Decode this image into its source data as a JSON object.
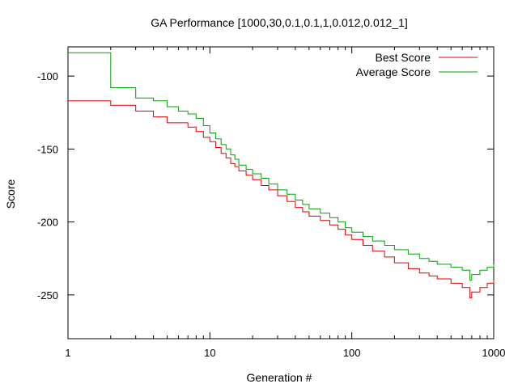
{
  "chart_data": {
    "type": "line",
    "title": "GA Performance [1000,30,0.1,0.1,1,0.012,0.012_1]",
    "xlabel": "Generation #",
    "ylabel": "Score",
    "xscale": "log",
    "xlim": [
      1,
      1000
    ],
    "ylim": [
      -280,
      -80
    ],
    "x_ticks": [
      1,
      10,
      100,
      1000
    ],
    "x_tick_labels": [
      "1",
      "10",
      "100",
      "1000"
    ],
    "y_ticks": [
      -100,
      -150,
      -200,
      -250
    ],
    "y_tick_labels": [
      "-100",
      "-150",
      "-200",
      "-250"
    ],
    "grid": false,
    "legend_position": "top-right",
    "colors": {
      "best": "#e00000",
      "average": "#00a000"
    },
    "series": [
      {
        "name": "Best Score",
        "color": "#e00000",
        "step": true,
        "points": [
          [
            1,
            -117
          ],
          [
            2,
            -120
          ],
          [
            3,
            -124
          ],
          [
            4,
            -128
          ],
          [
            5,
            -132
          ],
          [
            7,
            -135
          ],
          [
            8,
            -138
          ],
          [
            9,
            -142
          ],
          [
            10,
            -145
          ],
          [
            11,
            -149
          ],
          [
            12,
            -153
          ],
          [
            13,
            -156
          ],
          [
            14,
            -160
          ],
          [
            15,
            -162
          ],
          [
            16,
            -165
          ],
          [
            18,
            -168
          ],
          [
            20,
            -171
          ],
          [
            23,
            -175
          ],
          [
            26,
            -178
          ],
          [
            30,
            -182
          ],
          [
            35,
            -186
          ],
          [
            40,
            -190
          ],
          [
            45,
            -193
          ],
          [
            50,
            -196
          ],
          [
            60,
            -199
          ],
          [
            70,
            -202
          ],
          [
            80,
            -205
          ],
          [
            90,
            -209
          ],
          [
            100,
            -212
          ],
          [
            120,
            -216
          ],
          [
            140,
            -220
          ],
          [
            170,
            -224
          ],
          [
            200,
            -228
          ],
          [
            250,
            -232
          ],
          [
            300,
            -235
          ],
          [
            350,
            -237
          ],
          [
            400,
            -239
          ],
          [
            500,
            -242
          ],
          [
            600,
            -245
          ],
          [
            680,
            -252
          ],
          [
            700,
            -248
          ],
          [
            800,
            -245
          ],
          [
            900,
            -242
          ],
          [
            1000,
            -240
          ]
        ]
      },
      {
        "name": "Average Score",
        "color": "#00a000",
        "step": true,
        "points": [
          [
            1,
            -84
          ],
          [
            2,
            -108
          ],
          [
            3,
            -115
          ],
          [
            4,
            -117
          ],
          [
            5,
            -121
          ],
          [
            6,
            -124
          ],
          [
            7,
            -126
          ],
          [
            8,
            -129
          ],
          [
            9,
            -134
          ],
          [
            10,
            -139
          ],
          [
            11,
            -143
          ],
          [
            12,
            -147
          ],
          [
            13,
            -150
          ],
          [
            14,
            -154
          ],
          [
            15,
            -157
          ],
          [
            16,
            -161
          ],
          [
            18,
            -164
          ],
          [
            20,
            -167
          ],
          [
            23,
            -170
          ],
          [
            26,
            -174
          ],
          [
            30,
            -178
          ],
          [
            35,
            -181
          ],
          [
            40,
            -185
          ],
          [
            45,
            -188
          ],
          [
            50,
            -191
          ],
          [
            60,
            -194
          ],
          [
            70,
            -197
          ],
          [
            80,
            -200
          ],
          [
            90,
            -204
          ],
          [
            100,
            -207
          ],
          [
            120,
            -210
          ],
          [
            140,
            -213
          ],
          [
            170,
            -216
          ],
          [
            200,
            -219
          ],
          [
            250,
            -222
          ],
          [
            300,
            -225
          ],
          [
            350,
            -227
          ],
          [
            400,
            -229
          ],
          [
            500,
            -231
          ],
          [
            600,
            -233
          ],
          [
            680,
            -240
          ],
          [
            700,
            -236
          ],
          [
            800,
            -233
          ],
          [
            900,
            -231
          ],
          [
            1000,
            -229
          ]
        ]
      }
    ]
  }
}
